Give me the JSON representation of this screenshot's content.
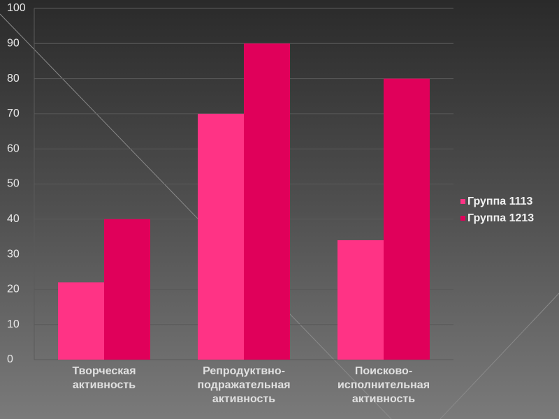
{
  "chart_data": {
    "type": "bar",
    "categories": [
      [
        "Творческая",
        "активность"
      ],
      [
        "Репродуктвно-",
        "подражательная",
        "активность"
      ],
      [
        "Поисково-",
        "исполнительная",
        "активность"
      ]
    ],
    "series": [
      {
        "name": "Группа 1113",
        "color": "#ff3385",
        "values": [
          22,
          70,
          34
        ]
      },
      {
        "name": "Группа 1213",
        "color": "#e0005a",
        "values": [
          40,
          90,
          80
        ]
      }
    ],
    "ylim": [
      0,
      100
    ],
    "yticks": [
      0,
      10,
      20,
      30,
      40,
      50,
      60,
      70,
      80,
      90,
      100
    ],
    "grid": true,
    "legend": "right"
  }
}
